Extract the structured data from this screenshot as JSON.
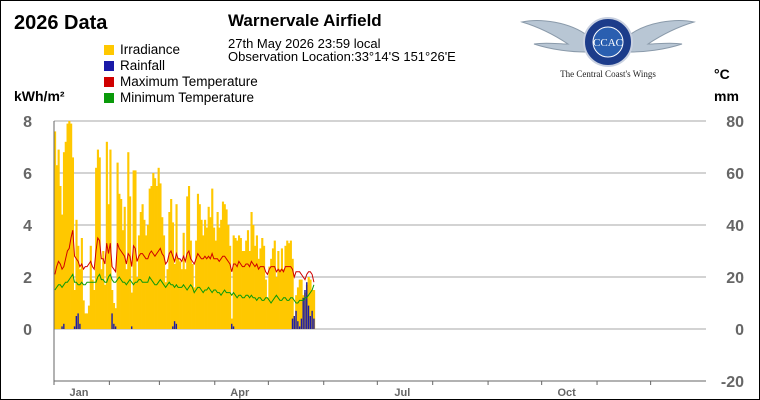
{
  "header": {
    "title": "2026 Data",
    "station": "Warnervale Airfield",
    "obs_time": "27th May 2026  23:59 local",
    "obs_location": "Observation Location:33°14'S 151°26'E"
  },
  "logo": {
    "caption": "The Central Coast's Wings",
    "ring_text": "Central Coast Aero Club",
    "monogram": "CCAC"
  },
  "units": {
    "left": "kWh/m²",
    "right_top": "°C",
    "right_bottom": "mm"
  },
  "chart_data": {
    "type": "bar",
    "title": "2026 Data",
    "legend": [
      {
        "name": "Irradiance",
        "color": "#ffc800"
      },
      {
        "name": "Rainfall",
        "color": "#1a1aa8"
      },
      {
        "name": "Maximum Temperature",
        "color": "#d00000"
      },
      {
        "name": "Minimum Temperature",
        "color": "#0a9a0a"
      }
    ],
    "legend_placement": "top-left",
    "y_left": {
      "label": "kWh/m²",
      "ticks": [
        "8",
        "6",
        "4",
        "2",
        "0"
      ],
      "range": [
        0,
        8
      ]
    },
    "y_right": {
      "label_top": "°C",
      "label_bottom": "mm",
      "ticks": [
        "80",
        "60",
        "40",
        "20",
        "0",
        "-20"
      ],
      "range": [
        -20,
        80
      ]
    },
    "x": {
      "ticks": [
        "Jan",
        "Apr",
        "Jul",
        "Oct"
      ],
      "range_days": [
        1,
        365
      ]
    },
    "grid": true,
    "series": [
      {
        "name": "Irradiance",
        "unit": "kWh/m²",
        "axis": "left",
        "start_day": 1,
        "values": [
          7.6,
          6.3,
          6.9,
          5.5,
          4.4,
          6.8,
          7.2,
          7.9,
          8.0,
          7.9,
          6.6,
          1.5,
          4.2,
          3.2,
          2.3,
          3.5,
          1.1,
          0.6,
          0.6,
          0.9,
          3.2,
          1.9,
          1.5,
          6.2,
          6.9,
          6.6,
          2.3,
          3.0,
          1.7,
          7.2,
          4.8,
          6.9,
          1.5,
          1.0,
          0.8,
          6.4,
          5.2,
          5.0,
          3.8,
          4.7,
          2.3,
          6.8,
          5.1,
          1.4,
          6.1,
          6.1,
          2.0,
          3.6,
          4.5,
          4.8,
          4.2,
          3.6,
          4.0,
          5.4,
          5.5,
          6.0,
          5.8,
          5.5,
          6.2,
          5.6,
          4.3,
          3.6,
          1.8,
          2.3,
          4.5,
          5.0,
          4.1,
          2.5,
          4.8,
          2.7,
          2.6,
          2.3,
          3.7,
          2.3,
          5.1,
          5.5,
          3.4,
          2.5,
          1.6,
          3.4,
          5.2,
          4.8,
          4.2,
          3.6,
          4.2,
          3.9,
          4.7,
          4.3,
          5.4,
          3.9,
          3.4,
          4.5,
          3.9,
          4.2,
          4.9,
          4.8,
          4.6,
          4.0,
          3.2,
          0.4,
          3.6,
          3.5,
          3.4,
          3.6,
          3.5,
          3.0,
          3.0,
          3.4,
          3.8,
          3.0,
          4.5,
          4.0,
          3.2,
          3.6,
          2.7,
          3.1,
          3.5,
          3.2,
          1.9,
          1.2,
          2.4,
          2.7,
          3.1,
          3.4,
          2.0,
          3.0,
          2.3,
          3.1,
          2.3,
          3.2,
          3.4,
          3.3,
          3.4,
          2.7,
          0.4,
          1.3,
          1.6,
          1.9,
          1.9,
          1.3,
          1.4,
          1.7,
          2.0,
          1.9,
          1.5,
          1.5
        ]
      },
      {
        "name": "Rainfall",
        "unit": "mm",
        "axis": "right",
        "start_day": 1,
        "values": [
          0,
          0,
          0,
          0,
          1,
          2,
          0,
          0,
          0,
          0,
          0,
          1,
          5,
          6,
          2,
          0,
          0,
          0,
          0,
          0,
          0,
          0,
          0,
          0,
          0,
          0,
          0,
          0,
          0,
          0,
          0,
          0,
          6,
          2,
          1,
          0,
          0,
          0,
          0,
          0,
          0,
          0,
          0,
          1,
          0,
          0,
          0,
          0,
          0,
          0,
          0,
          0,
          0,
          0,
          0,
          0,
          0,
          0,
          0,
          0,
          0,
          0,
          0,
          0,
          0,
          0,
          1,
          3,
          2,
          0,
          0,
          0,
          0,
          0,
          0,
          0,
          0,
          0,
          0,
          0,
          0,
          0,
          0,
          0,
          0,
          0,
          0,
          0,
          0,
          0,
          0,
          0,
          0,
          0,
          0,
          0,
          0,
          0,
          0,
          2,
          1,
          0,
          0,
          0,
          0,
          0,
          0,
          0,
          0,
          0,
          0,
          0,
          0,
          0,
          0,
          0,
          0,
          0,
          0,
          0,
          0,
          0,
          0,
          0,
          0,
          0,
          0,
          0,
          0,
          0,
          0,
          0,
          0,
          4,
          5,
          7,
          3,
          1,
          4,
          12,
          15,
          18,
          9,
          5,
          7,
          4
        ]
      },
      {
        "name": "Maximum Temperature",
        "unit": "°C",
        "axis": "right",
        "start_day": 1,
        "values": [
          21,
          24,
          26,
          25,
          23,
          24,
          27,
          30,
          31,
          35,
          38,
          28,
          27,
          26,
          24,
          25,
          23,
          24,
          24,
          25,
          26,
          24,
          23,
          30,
          35,
          34,
          27,
          27,
          25,
          33,
          29,
          33,
          24,
          23,
          22,
          33,
          31,
          30,
          29,
          28,
          25,
          29,
          28,
          24,
          32,
          31,
          26,
          28,
          29,
          29,
          28,
          27,
          27,
          29,
          30,
          29,
          28,
          29,
          30,
          31,
          29,
          28,
          25,
          26,
          29,
          30,
          28,
          26,
          29,
          27,
          27,
          26,
          28,
          26,
          29,
          30,
          27,
          26,
          25,
          27,
          29,
          28,
          27,
          27,
          28,
          27,
          28,
          27,
          29,
          27,
          27,
          27,
          26,
          27,
          28,
          28,
          27,
          26,
          25,
          22,
          25,
          25,
          24,
          26,
          25,
          24,
          24,
          25,
          25,
          24,
          26,
          25,
          24,
          25,
          23,
          24,
          24,
          24,
          22,
          21,
          23,
          24,
          24,
          24,
          22,
          23,
          22,
          23,
          22,
          24,
          24,
          24,
          24,
          23,
          20,
          22,
          22,
          22,
          21,
          20,
          19,
          21,
          22,
          22,
          21,
          18
        ]
      },
      {
        "name": "Minimum Temperature",
        "unit": "°C",
        "axis": "right",
        "start_day": 1,
        "values": [
          15,
          16,
          17,
          17,
          16,
          17,
          18,
          18,
          19,
          20,
          21,
          18,
          18,
          17,
          17,
          18,
          17,
          17,
          18,
          18,
          18,
          18,
          18,
          18,
          20,
          21,
          19,
          19,
          18,
          18,
          20,
          21,
          19,
          18,
          18,
          19,
          20,
          19,
          18,
          18,
          17,
          18,
          19,
          18,
          17,
          18,
          18,
          19,
          19,
          18,
          18,
          18,
          18,
          20,
          19,
          18,
          17,
          17,
          18,
          19,
          18,
          17,
          16,
          17,
          18,
          17,
          17,
          16,
          17,
          16,
          16,
          16,
          17,
          16,
          15,
          16,
          17,
          16,
          14,
          15,
          16,
          16,
          15,
          14,
          15,
          15,
          16,
          15,
          14,
          15,
          15,
          14,
          14,
          13,
          14,
          15,
          14,
          14,
          14,
          13,
          14,
          13,
          12,
          13,
          13,
          12,
          12,
          13,
          13,
          12,
          13,
          12,
          12,
          11,
          12,
          12,
          11,
          11,
          12,
          12,
          11,
          10,
          11,
          12,
          13,
          12,
          11,
          11,
          12,
          12,
          11,
          11,
          12,
          12,
          11,
          10,
          10,
          11,
          11,
          11,
          12,
          12,
          13,
          14,
          15,
          17
        ]
      }
    ]
  }
}
